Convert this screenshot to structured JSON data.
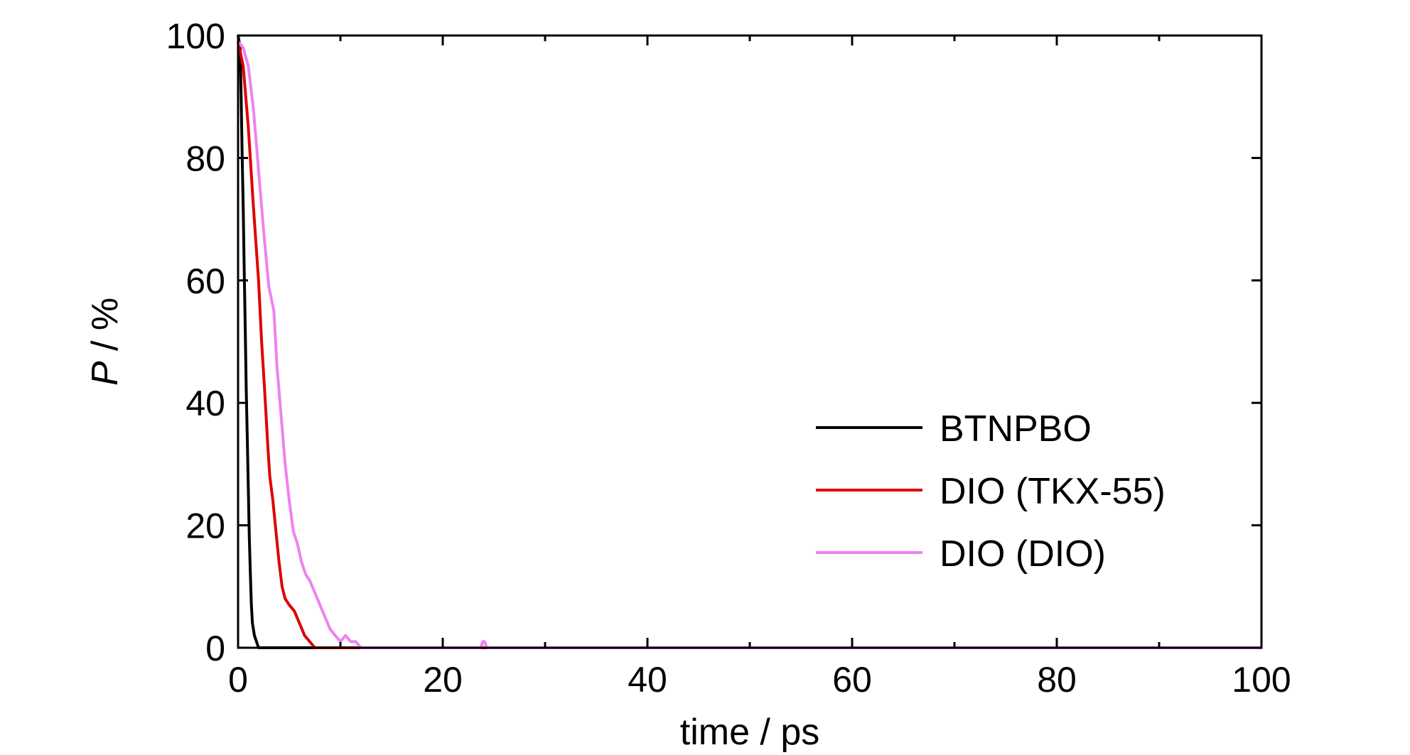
{
  "chart_data": {
    "type": "line",
    "title": "",
    "xlabel": "time / ps",
    "ylabel_var": "P",
    "ylabel_unit": " / %",
    "xlim": [
      0,
      100
    ],
    "ylim": [
      0,
      100
    ],
    "x_ticks": [
      0,
      20,
      40,
      60,
      80,
      100
    ],
    "y_ticks": [
      0,
      20,
      40,
      60,
      80,
      100
    ],
    "grid": false,
    "legend_position": "lower-right",
    "series": [
      {
        "name": "BTNPBO",
        "color": "#000000",
        "points": [
          [
            0,
            100
          ],
          [
            0.2,
            98
          ],
          [
            0.3,
            90
          ],
          [
            0.4,
            80
          ],
          [
            0.5,
            72
          ],
          [
            0.6,
            62
          ],
          [
            0.7,
            52
          ],
          [
            0.8,
            42
          ],
          [
            0.9,
            34
          ],
          [
            1.0,
            26
          ],
          [
            1.1,
            18
          ],
          [
            1.2,
            12
          ],
          [
            1.3,
            7
          ],
          [
            1.4,
            4
          ],
          [
            1.5,
            3
          ],
          [
            1.6,
            2
          ],
          [
            1.8,
            1
          ],
          [
            2.0,
            0
          ],
          [
            100,
            0
          ]
        ]
      },
      {
        "name": "DIO (TKX-55)",
        "color": "#e00000",
        "points": [
          [
            0,
            99
          ],
          [
            0.5,
            95
          ],
          [
            1.0,
            85
          ],
          [
            1.5,
            72
          ],
          [
            2.0,
            60
          ],
          [
            2.3,
            50
          ],
          [
            2.6,
            42
          ],
          [
            2.9,
            33
          ],
          [
            3.1,
            28
          ],
          [
            3.4,
            24
          ],
          [
            3.7,
            19
          ],
          [
            4.0,
            14
          ],
          [
            4.3,
            10
          ],
          [
            4.6,
            8
          ],
          [
            5.0,
            7
          ],
          [
            5.5,
            6
          ],
          [
            6.0,
            4
          ],
          [
            6.5,
            2
          ],
          [
            7.0,
            1
          ],
          [
            7.5,
            0
          ],
          [
            100,
            0
          ]
        ]
      },
      {
        "name": "DIO (DIO)",
        "color": "#ee82ee",
        "points": [
          [
            0,
            99
          ],
          [
            0.5,
            98
          ],
          [
            1.0,
            95
          ],
          [
            1.5,
            88
          ],
          [
            2.0,
            78
          ],
          [
            2.5,
            68
          ],
          [
            3.0,
            59
          ],
          [
            3.5,
            55
          ],
          [
            3.8,
            46
          ],
          [
            4.2,
            38
          ],
          [
            4.6,
            30
          ],
          [
            5.0,
            24
          ],
          [
            5.4,
            19
          ],
          [
            5.8,
            17
          ],
          [
            6.2,
            14
          ],
          [
            6.6,
            12
          ],
          [
            7.0,
            11
          ],
          [
            7.5,
            9
          ],
          [
            8.0,
            7
          ],
          [
            8.5,
            5
          ],
          [
            9.0,
            3
          ],
          [
            9.5,
            2
          ],
          [
            10.0,
            1
          ],
          [
            10.5,
            2
          ],
          [
            11.0,
            1
          ],
          [
            11.5,
            1
          ],
          [
            12.0,
            0
          ],
          [
            23.7,
            0
          ],
          [
            23.9,
            1
          ],
          [
            24.1,
            1
          ],
          [
            24.3,
            0
          ],
          [
            100,
            0
          ]
        ]
      }
    ]
  }
}
